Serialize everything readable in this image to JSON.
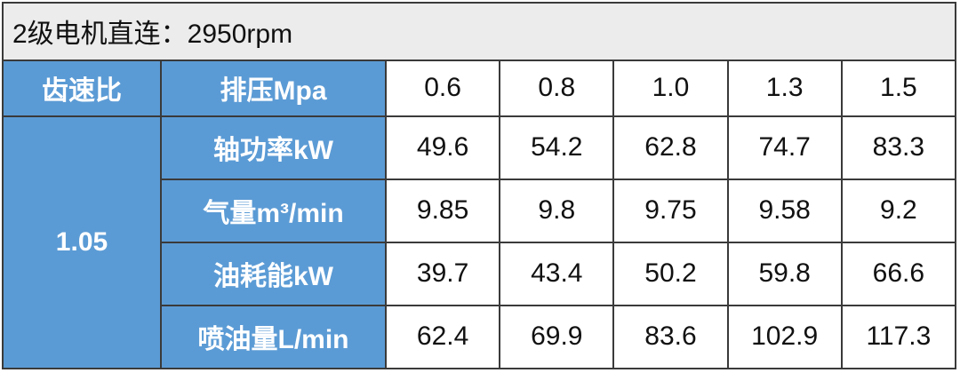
{
  "title": "2级电机直连：2950rpm",
  "table": {
    "header": [
      "齿速比",
      "排压Mpa",
      "0.6",
      "0.8",
      "1.0",
      "1.3",
      "1.5"
    ],
    "group": "1.05",
    "rows": [
      [
        "轴功率kW",
        "49.6",
        "54.2",
        "62.8",
        "74.7",
        "83.3"
      ],
      [
        "气量m³/min",
        "9.85",
        "9.8",
        "9.75",
        "9.58",
        "9.2"
      ],
      [
        "油耗能kW",
        "39.7",
        "43.4",
        "50.2",
        "59.8",
        "66.6"
      ],
      [
        "喷油量L/min",
        "62.4",
        "69.9",
        "83.6",
        "102.9",
        "117.3"
      ]
    ]
  }
}
